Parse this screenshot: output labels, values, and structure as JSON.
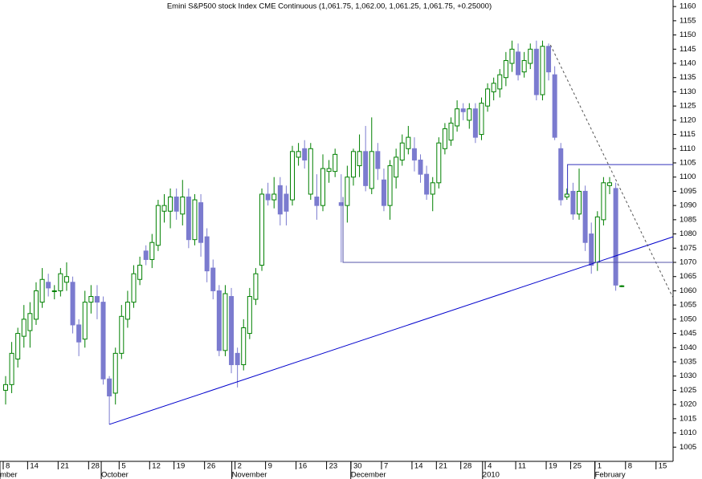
{
  "chart_data": {
    "type": "candlestick",
    "title": "Emini S&P500 stock Index CME Continuous (1,061.75, 1,062.00, 1,061.25, 1,061.75, +0.25000)",
    "open": [
      1025,
      1027,
      1036,
      1044,
      1046,
      1050,
      1056,
      1063,
      1060,
      1060,
      1063,
      1063,
      1048,
      1043,
      1056,
      1058,
      1056,
      1029,
      1024,
      1038,
      1050,
      1056,
      1064,
      1074,
      1071,
      1076,
      1088,
      1088,
      1093,
      1087,
      1093,
      1078,
      1091,
      1079,
      1068,
      1060,
      1039,
      1058,
      1038,
      1034,
      1045,
      1057,
      1069,
      1094,
      1092,
      1097,
      1094,
      1092,
      1107,
      1110,
      1094,
      1093,
      1090,
      1102,
      1102,
      1091,
      1090,
      1100,
      1104,
      1109,
      1096,
      1109,
      1099,
      1090,
      1100,
      1106,
      1110,
      1110,
      1106,
      1101,
      1094,
      1098,
      1110,
      1113,
      1118,
      1124,
      1120,
      1124,
      1115,
      1125,
      1130,
      1131,
      1135,
      1140,
      1144,
      1137,
      1140,
      1145,
      1129,
      1146,
      1136,
      1110,
      1093,
      1095,
      1087,
      1095,
      1080,
      1070,
      1085,
      1097,
      1096,
      1061.75
    ],
    "high": [
      1030,
      1042,
      1047,
      1055,
      1056,
      1063,
      1068,
      1066,
      1062,
      1068,
      1070,
      1065,
      1050,
      1060,
      1062,
      1062,
      1058,
      1030,
      1040,
      1055,
      1060,
      1069,
      1072,
      1076,
      1080,
      1092,
      1094,
      1096,
      1096,
      1099,
      1096,
      1094,
      1094,
      1082,
      1071,
      1062,
      1062,
      1061,
      1040,
      1050,
      1061,
      1068,
      1096,
      1098,
      1100,
      1100,
      1097,
      1111,
      1112,
      1113,
      1112,
      1101,
      1108,
      1106,
      1110,
      1101,
      1104,
      1110,
      1115,
      1118,
      1121,
      1112,
      1103,
      1106,
      1110,
      1115,
      1118,
      1114,
      1108,
      1104,
      1100,
      1114,
      1119,
      1121,
      1127,
      1126,
      1126,
      1126,
      1128,
      1133,
      1135,
      1138,
      1144,
      1148,
      1147,
      1144,
      1147,
      1148,
      1148,
      1147,
      1139,
      1112,
      1096,
      1098,
      1103,
      1097,
      1084,
      1088,
      1100,
      1100,
      1098,
      1062
    ],
    "low": [
      1020,
      1024,
      1033,
      1040,
      1040,
      1048,
      1054,
      1058,
      1057,
      1058,
      1060,
      1045,
      1037,
      1040,
      1052,
      1050,
      1027,
      1013,
      1020,
      1036,
      1047,
      1054,
      1062,
      1069,
      1068,
      1074,
      1084,
      1082,
      1085,
      1083,
      1075,
      1076,
      1072,
      1063,
      1057,
      1037,
      1037,
      1031,
      1026,
      1032,
      1043,
      1055,
      1067,
      1090,
      1089,
      1083,
      1083,
      1090,
      1104,
      1103,
      1092,
      1085,
      1088,
      1098,
      1100,
      1070,
      1084,
      1097,
      1100,
      1095,
      1094,
      1099,
      1088,
      1085,
      1096,
      1104,
      1108,
      1102,
      1098,
      1092,
      1088,
      1096,
      1108,
      1111,
      1116,
      1120,
      1117,
      1112,
      1113,
      1123,
      1127,
      1128,
      1132,
      1137,
      1134,
      1135,
      1138,
      1127,
      1127,
      1134,
      1113,
      1090,
      1092,
      1085,
      1085,
      1074,
      1066,
      1067,
      1083,
      1094,
      1060,
      1061.25
    ],
    "close": [
      1027,
      1038,
      1045,
      1050,
      1052,
      1060,
      1064,
      1061,
      1060,
      1066,
      1065,
      1048,
      1042,
      1056,
      1058,
      1056,
      1029,
      1023,
      1038,
      1051,
      1056,
      1066,
      1069,
      1071,
      1077,
      1090,
      1090,
      1093,
      1088,
      1093,
      1078,
      1092,
      1077,
      1067,
      1060,
      1039,
      1059,
      1034,
      1034,
      1047,
      1058,
      1066,
      1094,
      1092,
      1094,
      1087,
      1088,
      1109,
      1109,
      1106,
      1110,
      1090,
      1103,
      1103,
      1108,
      1090,
      1100,
      1109,
      1109,
      1097,
      1109,
      1103,
      1090,
      1104,
      1107,
      1112,
      1114,
      1106,
      1101,
      1094,
      1098,
      1112,
      1117,
      1119,
      1124,
      1123,
      1124,
      1114,
      1126,
      1131,
      1133,
      1136,
      1141,
      1145,
      1136,
      1141,
      1145,
      1129,
      1146,
      1137,
      1114,
      1092,
      1094,
      1087,
      1095,
      1077,
      1069,
      1086,
      1098,
      1098,
      1062,
      1061.75
    ],
    "up_color": "#008000",
    "down_color": "#7b7bcf",
    "xlim": [
      -0.92,
      109.4
    ],
    "ylim": [
      1000,
      1162.3
    ],
    "yticks": [
      1005,
      1010,
      1015,
      1020,
      1025,
      1030,
      1035,
      1040,
      1045,
      1050,
      1055,
      1060,
      1065,
      1070,
      1075,
      1080,
      1085,
      1090,
      1095,
      1100,
      1105,
      1110,
      1115,
      1120,
      1125,
      1130,
      1135,
      1140,
      1145,
      1150,
      1155,
      1160
    ],
    "xticks": [
      {
        "value": 0,
        "label": "8"
      },
      {
        "value": 4,
        "label": "14"
      },
      {
        "value": 9,
        "label": "21"
      },
      {
        "value": 14,
        "label": "28"
      },
      {
        "value": 19,
        "label": "5"
      },
      {
        "value": 24,
        "label": "12"
      },
      {
        "value": 28,
        "label": "19"
      },
      {
        "value": 33,
        "label": "26"
      },
      {
        "value": 38,
        "label": "2"
      },
      {
        "value": 43,
        "label": "9"
      },
      {
        "value": 48,
        "label": "16"
      },
      {
        "value": 53,
        "label": "23"
      },
      {
        "value": 57,
        "label": "30"
      },
      {
        "value": 62,
        "label": "7"
      },
      {
        "value": 67,
        "label": "14"
      },
      {
        "value": 71,
        "label": "21"
      },
      {
        "value": 75,
        "label": "28"
      },
      {
        "value": 79,
        "label": "4"
      },
      {
        "value": 84,
        "label": "11"
      },
      {
        "value": 89,
        "label": "19"
      },
      {
        "value": 93,
        "label": "25"
      },
      {
        "value": 97,
        "label": "1"
      },
      {
        "value": 102,
        "label": "8"
      },
      {
        "value": 107,
        "label": "15"
      }
    ],
    "months": [
      {
        "value": -0.4,
        "label": "mber"
      },
      {
        "value": 16.2,
        "label": "October"
      },
      {
        "value": 37.6,
        "label": "November"
      },
      {
        "value": 57.1,
        "label": "December"
      },
      {
        "value": 78.7,
        "label": "2010"
      },
      {
        "value": 97.1,
        "label": "February"
      }
    ],
    "overlays": [
      {
        "x": [
          17,
          109.4
        ],
        "y": [
          1013,
          1079
        ],
        "color": "#0000cc",
        "dash": false
      },
      {
        "x": [
          89.3,
          109.4
        ],
        "y": [
          1146.5,
          1057.5
        ],
        "color": "#555555",
        "dash": true
      },
      {
        "x": [
          55.3,
          55.3,
          109.4
        ],
        "y": [
          1093,
          1070,
          1070
        ],
        "color": "#5555aa",
        "dash": false
      },
      {
        "x": [
          92.1,
          92.1,
          109.4
        ],
        "y": [
          1094,
          1104.4,
          1104.4
        ],
        "color": "#3333bb",
        "dash": false
      }
    ]
  }
}
